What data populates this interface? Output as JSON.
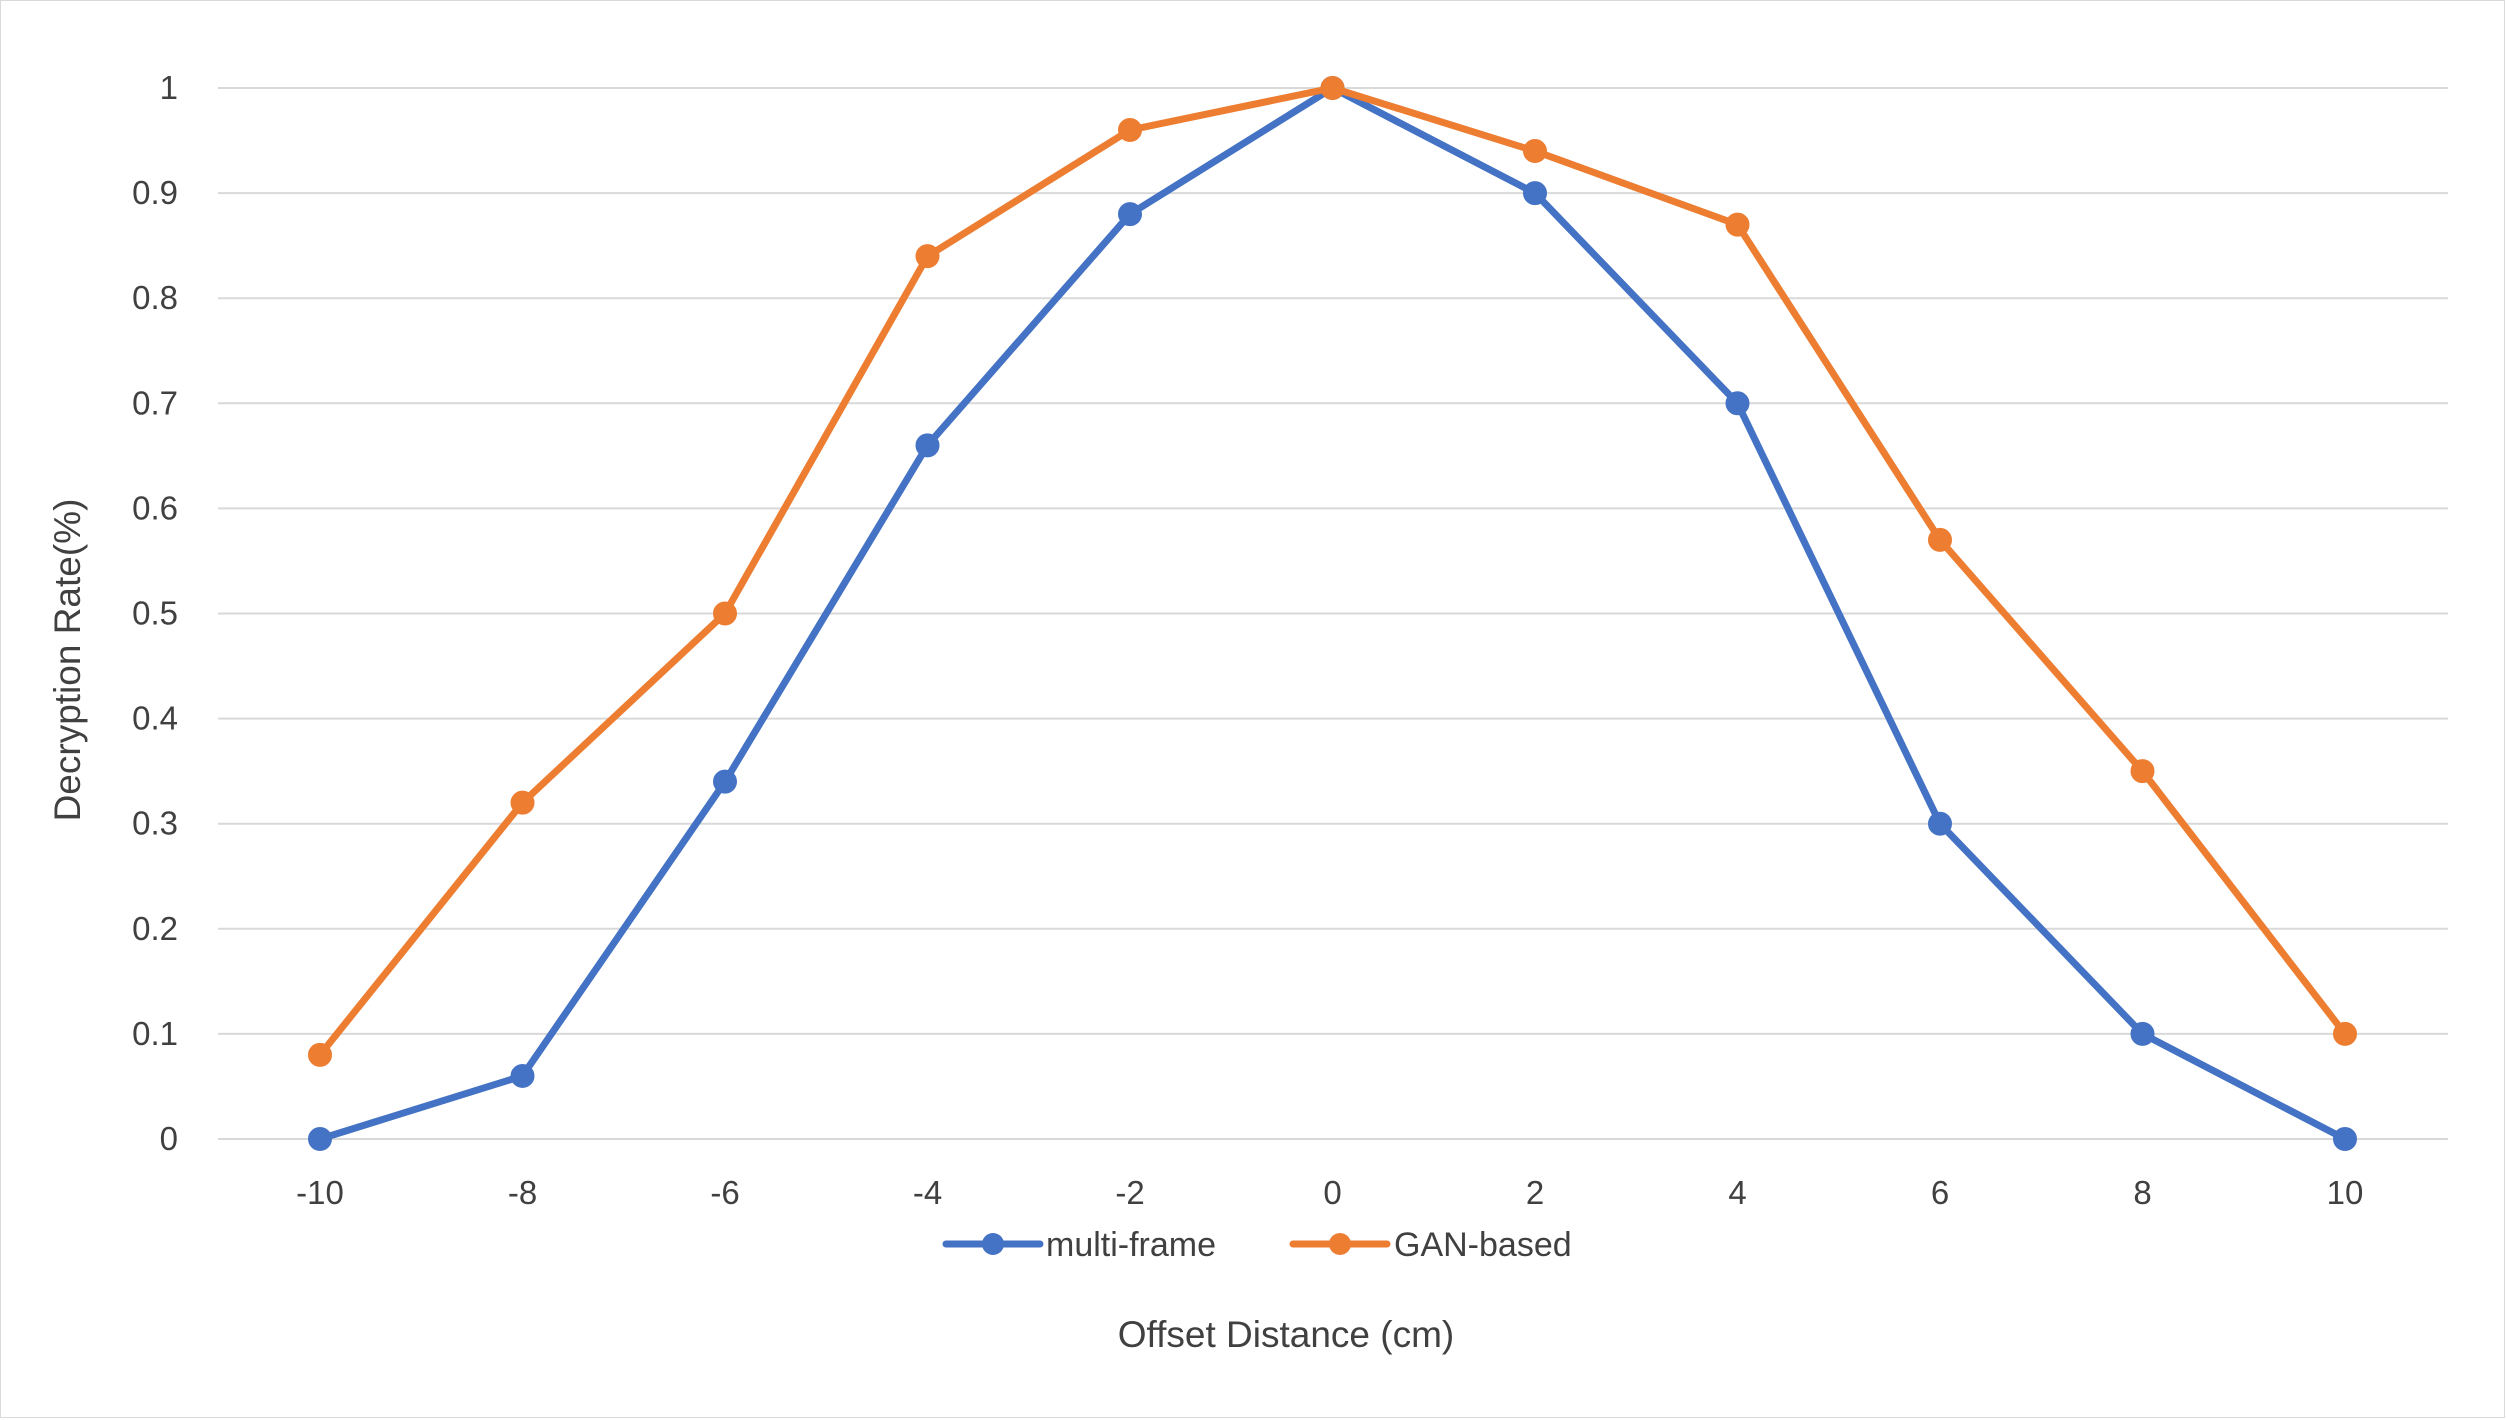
{
  "chart_data": {
    "type": "line",
    "title": "",
    "xlabel": "Offset Distance (cm)",
    "ylabel": "Decryption Rate(%)",
    "x": [
      -10,
      -8,
      -6,
      -4,
      -2,
      0,
      2,
      4,
      6,
      8,
      10
    ],
    "x_tick_labels": [
      "-10",
      "-8",
      "-6",
      "-4",
      "-2",
      "0",
      "2",
      "4",
      "6",
      "8",
      "10"
    ],
    "y_tick_labels": [
      "0",
      "0.1",
      "0.2",
      "0.3",
      "0.4",
      "0.5",
      "0.6",
      "0.7",
      "0.8",
      "0.9",
      "1"
    ],
    "ylim": [
      0,
      1
    ],
    "grid": "horizontal",
    "legend_position": "bottom",
    "series": [
      {
        "name": "multi-frame",
        "color": "#4472c4",
        "values": [
          0,
          0.06,
          0.34,
          0.66,
          0.88,
          1.0,
          0.9,
          0.7,
          0.3,
          0.1,
          0
        ]
      },
      {
        "name": "GAN-based",
        "color": "#ed7d31",
        "values": [
          0.08,
          0.32,
          0.5,
          0.84,
          0.96,
          1.0,
          0.94,
          0.87,
          0.57,
          0.35,
          0.1
        ]
      }
    ]
  }
}
